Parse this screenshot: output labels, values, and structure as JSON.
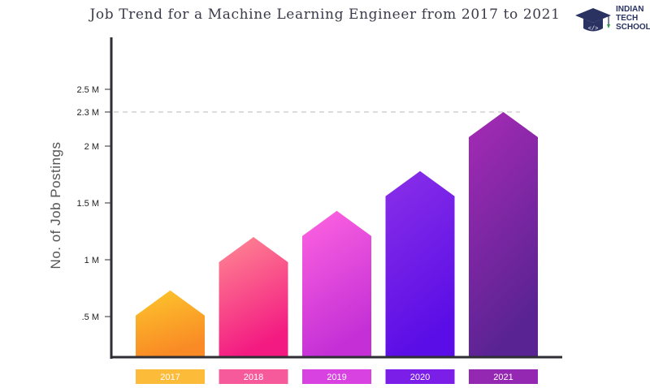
{
  "logo": {
    "lines": [
      "INDIAN",
      "TECH",
      "SCHOOL"
    ],
    "icon": "graduation-cap-code-icon"
  },
  "colors": {
    "axis": "#2e2e35",
    "reference_line": "#b8b8b8",
    "bar_gradients": [
      [
        "#fdc72c",
        "#f98a25"
      ],
      [
        "#ff8a93",
        "#f31a82"
      ],
      [
        "#ff64e0",
        "#c430d6"
      ],
      [
        "#8b30e8",
        "#5a0de6"
      ],
      [
        "#a62bb5",
        "#5a2393"
      ]
    ],
    "label_boxes": [
      "#fdbb3a",
      "#f65a9b",
      "#d742e0",
      "#7a1ee8",
      "#9428b2"
    ]
  },
  "chart_data": {
    "type": "bar",
    "title": "Job Trend for a Machine Learning Engineer from 2017 to 2021",
    "xlabel": "",
    "ylabel": "No. of Job Postings",
    "categories": [
      "2017",
      "2018",
      "2019",
      "2020",
      "2021"
    ],
    "values": [
      0.73,
      1.2,
      1.43,
      1.78,
      2.3
    ],
    "value_unit": "M",
    "y_ticks": [
      {
        "value": 0.5,
        "label": ".5 M"
      },
      {
        "value": 1.0,
        "label": "1 M"
      },
      {
        "value": 1.5,
        "label": "1.5 M"
      },
      {
        "value": 2.0,
        "label": "2 M"
      },
      {
        "value": 2.3,
        "label": "2.3 M"
      },
      {
        "value": 2.5,
        "label": "2.5 M"
      }
    ],
    "reference_line": 2.3,
    "ylim": [
      0,
      2.5
    ],
    "grid": false,
    "legend": "none"
  }
}
